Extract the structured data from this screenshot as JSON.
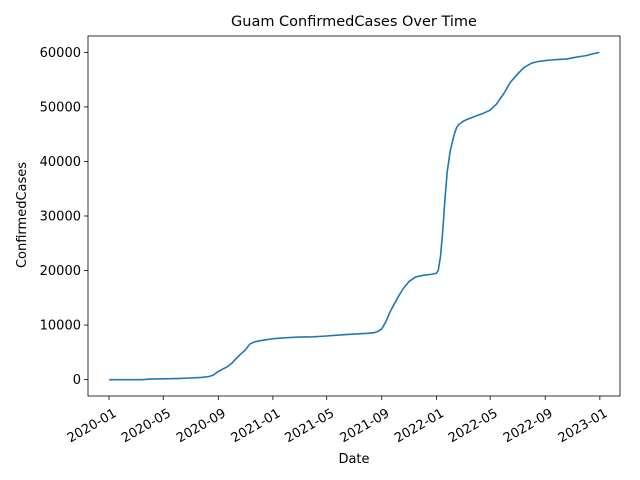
{
  "chart_data": {
    "type": "line",
    "title": "Guam  ConfirmedCases Over Time",
    "xlabel": "Date",
    "ylabel": "ConfirmedCases",
    "xlim": [
      "2019-11-15",
      "2023-02-15"
    ],
    "ylim": [
      -3000,
      63000
    ],
    "grid": false,
    "line_color": "#1f77b4",
    "x_ticks": [
      "2020-01",
      "2020-05",
      "2020-09",
      "2021-01",
      "2021-05",
      "2021-09",
      "2022-01",
      "2022-05",
      "2022-09",
      "2023-01"
    ],
    "y_ticks": [
      0,
      10000,
      20000,
      30000,
      40000,
      50000,
      60000
    ],
    "series": [
      {
        "x": [
          "2020-01-01",
          "2020-03-15",
          "2020-04-01",
          "2020-05-01",
          "2020-06-01",
          "2020-07-01",
          "2020-07-25",
          "2020-08-10",
          "2020-08-20",
          "2020-09-01",
          "2020-09-10",
          "2020-09-20",
          "2020-10-01",
          "2020-10-10",
          "2020-10-20",
          "2020-11-01",
          "2020-11-10",
          "2020-11-20",
          "2020-12-01",
          "2020-12-15",
          "2021-01-01",
          "2021-02-01",
          "2021-03-01",
          "2021-04-01",
          "2021-05-01",
          "2021-06-01",
          "2021-07-01",
          "2021-08-01",
          "2021-08-15",
          "2021-08-25",
          "2021-09-01",
          "2021-09-10",
          "2021-09-20",
          "2021-10-01",
          "2021-10-10",
          "2021-10-20",
          "2021-11-01",
          "2021-11-15",
          "2021-12-01",
          "2021-12-20",
          "2022-01-01",
          "2022-01-05",
          "2022-01-10",
          "2022-01-15",
          "2022-01-20",
          "2022-01-25",
          "2022-02-01",
          "2022-02-10",
          "2022-02-15",
          "2022-02-20",
          "2022-03-01",
          "2022-03-10",
          "2022-03-20",
          "2022-04-01",
          "2022-04-15",
          "2022-05-01",
          "2022-05-15",
          "2022-06-01",
          "2022-06-15",
          "2022-07-01",
          "2022-07-15",
          "2022-08-01",
          "2022-08-15",
          "2022-09-01",
          "2022-09-15",
          "2022-10-01",
          "2022-10-20",
          "2022-11-01",
          "2022-11-15",
          "2022-12-01",
          "2022-12-15",
          "2022-12-31"
        ],
        "y": [
          0,
          0,
          100,
          150,
          200,
          300,
          400,
          550,
          800,
          1500,
          1900,
          2300,
          3000,
          3800,
          4600,
          5500,
          6500,
          6900,
          7100,
          7300,
          7500,
          7700,
          7800,
          7850,
          8000,
          8200,
          8350,
          8500,
          8600,
          8900,
          9300,
          10600,
          12500,
          14200,
          15500,
          16800,
          18000,
          18800,
          19100,
          19300,
          19500,
          20000,
          22500,
          27000,
          33000,
          38000,
          42000,
          45000,
          46200,
          46800,
          47300,
          47700,
          48000,
          48400,
          48800,
          49400,
          50500,
          52500,
          54500,
          56000,
          57200,
          58000,
          58300,
          58500,
          58600,
          58700,
          58800,
          59000,
          59200,
          59400,
          59700,
          60000
        ]
      }
    ]
  }
}
